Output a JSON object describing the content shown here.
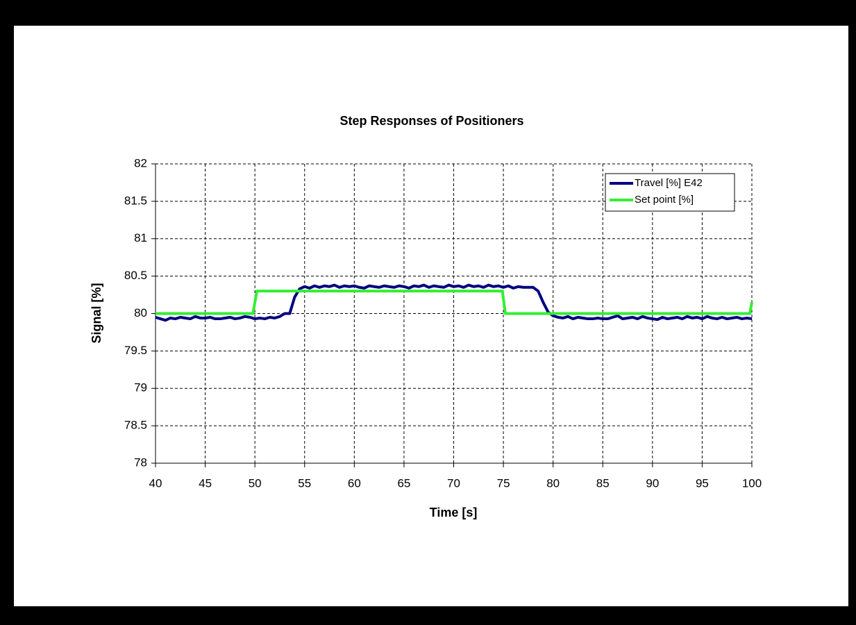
{
  "chart_data": {
    "type": "line",
    "title": "Step Responses of Positioners",
    "x_label": "Time [s]",
    "y_label": "Signal [%]",
    "xlim": [
      40,
      100
    ],
    "xticks": [
      40,
      45,
      50,
      55,
      60,
      65,
      70,
      75,
      80,
      85,
      90,
      95,
      100
    ],
    "ylim": [
      78,
      82
    ],
    "yticks": [
      78,
      78.5,
      79,
      79.5,
      80,
      80.5,
      81,
      81.5,
      82
    ],
    "grid": true,
    "legend": "upper right",
    "series": [
      {
        "name": "Travel [%] E42",
        "color": "#000080",
        "x": [
          40,
          40.5,
          41,
          41.5,
          42,
          42.5,
          43,
          43.5,
          44,
          44.5,
          45,
          45.5,
          46,
          46.5,
          47,
          47.5,
          48,
          48.5,
          49,
          49.5,
          50,
          50.5,
          51,
          51.5,
          52,
          52.5,
          53,
          53.5,
          54,
          54.5,
          55,
          55.5,
          56,
          56.5,
          57,
          57.5,
          58,
          58.5,
          59,
          59.5,
          60,
          60.5,
          61,
          61.5,
          62,
          62.5,
          63,
          63.5,
          64,
          64.5,
          65,
          65.5,
          66,
          66.5,
          67,
          67.5,
          68,
          68.5,
          69,
          69.5,
          70,
          70.5,
          71,
          71.5,
          72,
          72.5,
          73,
          73.5,
          74,
          74.5,
          75,
          75.5,
          76,
          76.5,
          77,
          77.5,
          78,
          78.5,
          79,
          79.5,
          80,
          80.5,
          81,
          81.5,
          82,
          82.5,
          83,
          83.5,
          84,
          84.5,
          85,
          85.5,
          86,
          86.5,
          87,
          87.5,
          88,
          88.5,
          89,
          89.5,
          90,
          90.5,
          91,
          91.5,
          92,
          92.5,
          93,
          93.5,
          94,
          94.5,
          95,
          95.5,
          96,
          96.5,
          97,
          97.5,
          98,
          98.5,
          99,
          99.5,
          100
        ],
        "values": [
          79.95,
          79.93,
          79.91,
          79.94,
          79.93,
          79.95,
          79.94,
          79.93,
          79.96,
          79.94,
          79.94,
          79.95,
          79.93,
          79.93,
          79.94,
          79.95,
          79.93,
          79.94,
          79.96,
          79.95,
          79.93,
          79.94,
          79.93,
          79.95,
          79.94,
          79.96,
          80.0,
          80.0,
          80.22,
          80.33,
          80.36,
          80.34,
          80.37,
          80.35,
          80.37,
          80.36,
          80.38,
          80.35,
          80.37,
          80.36,
          80.37,
          80.35,
          80.34,
          80.37,
          80.36,
          80.35,
          80.37,
          80.36,
          80.35,
          80.37,
          80.36,
          80.34,
          80.37,
          80.36,
          80.38,
          80.35,
          80.37,
          80.36,
          80.35,
          80.38,
          80.36,
          80.37,
          80.35,
          80.38,
          80.36,
          80.37,
          80.35,
          80.38,
          80.36,
          80.37,
          80.35,
          80.37,
          80.34,
          80.36,
          80.35,
          80.35,
          80.35,
          80.3,
          80.15,
          80.02,
          79.97,
          79.95,
          79.94,
          79.96,
          79.93,
          79.95,
          79.94,
          79.93,
          79.93,
          79.94,
          79.93,
          79.93,
          79.95,
          79.97,
          79.93,
          79.94,
          79.95,
          79.93,
          79.96,
          79.94,
          79.93,
          79.92,
          79.95,
          79.93,
          79.94,
          79.95,
          79.93,
          79.96,
          79.94,
          79.95,
          79.93,
          79.96,
          79.94,
          79.93,
          79.95,
          79.93,
          79.94,
          79.95,
          79.93,
          79.94,
          79.93
        ]
      },
      {
        "name": "Set point [%]",
        "color": "#33ee33",
        "x": [
          40,
          49.8,
          50.2,
          74.9,
          75.2,
          99.8,
          100
        ],
        "values": [
          80,
          80,
          80.3,
          80.3,
          80,
          80,
          80.15
        ]
      }
    ]
  }
}
